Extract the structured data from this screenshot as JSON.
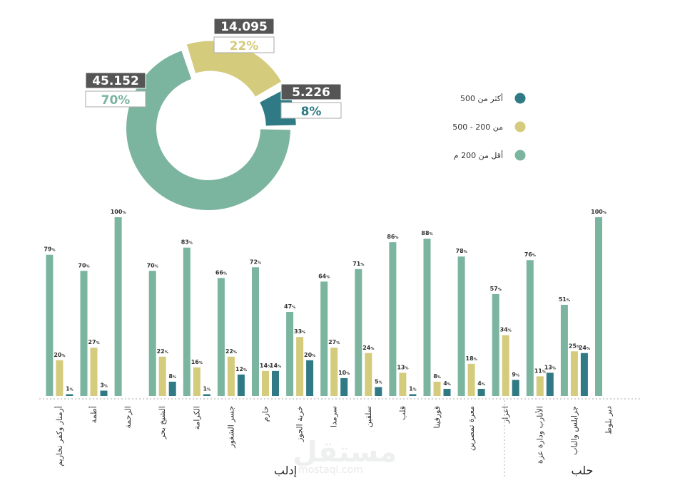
{
  "colors": {
    "teal": "#7bb5a0",
    "yellow": "#d5cb7d",
    "dark": "#2f7a84",
    "callout_bg": "#555555",
    "text": "#333333"
  },
  "watermark": {
    "text": "مستقل",
    "url": "mostaql.com"
  },
  "chart_data": [
    {
      "type": "pie",
      "subtype": "donut",
      "slices": [
        {
          "label": "أكثر من 500",
          "value": 5.226,
          "percent": "8%",
          "value_text": "5.226",
          "color": "#2f7a84"
        },
        {
          "label": "من 200 - 500",
          "value": 14.095,
          "percent": "22%",
          "value_text": "14.095",
          "color": "#d5cb7d"
        },
        {
          "label": "أقل من 200 م",
          "value": 45.152,
          "percent": "70%",
          "value_text": "45.152",
          "color": "#7bb5a0"
        }
      ],
      "legend_position": "right"
    },
    {
      "type": "bar",
      "ylim": [
        0,
        100
      ],
      "grid": false,
      "categories": [
        "دير بلوط",
        "جرابلس والباب",
        "الأتارب ودارة عزة",
        "اعزاز",
        "معرة تمصرين",
        "قورقينا",
        "قلب",
        "سلقين",
        "سرمدا",
        "خربة الجوز",
        "حارم",
        "جسر الشغور",
        "الكرامة",
        "الشيخ بحر",
        "الرحمة",
        "أطمة",
        "أرمناز وكفر تخاريم"
      ],
      "groups": [
        {
          "name": "حلب",
          "count": 4
        },
        {
          "name": "إدلب",
          "count": 13
        }
      ],
      "series": [
        {
          "name": "أقل من 200 م",
          "color": "#7bb5a0",
          "values": [
            100,
            51,
            76,
            57,
            78,
            88,
            86,
            71,
            64,
            47,
            72,
            66,
            83,
            70,
            100,
            70,
            79
          ]
        },
        {
          "name": "من 200 - 500",
          "color": "#d5cb7d",
          "values": [
            null,
            25,
            11,
            34,
            18,
            8,
            13,
            24,
            27,
            33,
            14,
            22,
            16,
            22,
            null,
            27,
            20
          ]
        },
        {
          "name": "أكثر من 500",
          "color": "#2f7a84",
          "values": [
            null,
            24,
            13,
            9,
            4,
            4,
            1,
            5,
            10,
            20,
            14,
            12,
            1,
            8,
            null,
            3,
            1
          ]
        }
      ],
      "value_suffix": "%"
    }
  ]
}
